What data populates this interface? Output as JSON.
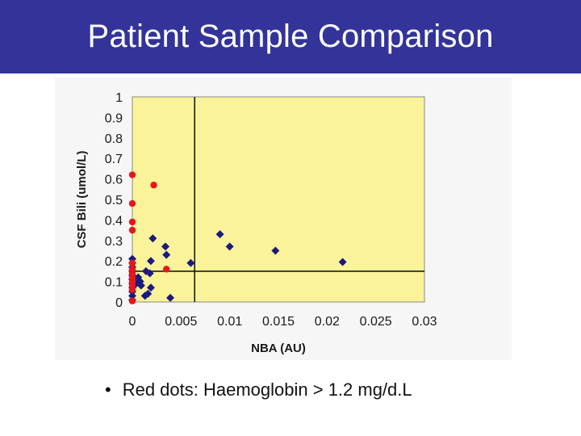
{
  "slide": {
    "title": "Patient Sample Comparison",
    "bullet_marker": "•",
    "bullet_text": "Red dots: Haemoglobin > 1.2 mg/d.L"
  },
  "colors": {
    "title_bar": "#333399",
    "plot_bg": "#fbf399",
    "diamond_series": "#1a1a80",
    "dot_series": "#e8161b",
    "reference_lines": "#1a1a1a"
  },
  "chart_data": {
    "type": "scatter",
    "title": "",
    "xlabel": "NBA (AU)",
    "ylabel": "CSF Bili (umol/L)",
    "xlim": [
      0,
      0.03
    ],
    "ylim": [
      0,
      1
    ],
    "x_ticks": [
      0,
      0.005,
      0.01,
      0.015,
      0.02,
      0.025,
      0.03
    ],
    "x_tick_labels": [
      "0",
      "0.005",
      "0.01",
      "0.015",
      "0.02",
      "0.025",
      "0.03"
    ],
    "y_ticks": [
      0,
      0.1,
      0.2,
      0.3,
      0.4,
      0.5,
      0.6,
      0.7,
      0.8,
      0.9,
      1
    ],
    "y_tick_labels": [
      "0",
      "0.1",
      "0.2",
      "0.3",
      "0.4",
      "0.5",
      "0.6",
      "0.7",
      "0.8",
      "0.9",
      "1"
    ],
    "grid": false,
    "legend": "none",
    "reference_lines": {
      "x": 0.0064,
      "y": 0.15
    },
    "series": [
      {
        "marker": "diamond",
        "color": "#1a1a80",
        "points": [
          [
            0,
            0.21
          ],
          [
            0,
            0.19
          ],
          [
            0,
            0.17
          ],
          [
            0,
            0.15
          ],
          [
            0,
            0.13
          ],
          [
            0,
            0.11
          ],
          [
            0,
            0.09
          ],
          [
            0,
            0.07
          ],
          [
            0,
            0.05
          ],
          [
            0,
            0.03
          ],
          [
            0,
            0.01
          ],
          [
            0.0004,
            0.09
          ],
          [
            0.0006,
            0.12
          ],
          [
            0.0008,
            0.1
          ],
          [
            0.0009,
            0.08
          ],
          [
            0.0013,
            0.03
          ],
          [
            0.0014,
            0.15
          ],
          [
            0.0016,
            0.04
          ],
          [
            0.0018,
            0.14
          ],
          [
            0.0019,
            0.07
          ],
          [
            0.0019,
            0.2
          ],
          [
            0.0021,
            0.31
          ],
          [
            0.0034,
            0.27
          ],
          [
            0.0035,
            0.23
          ],
          [
            0.0039,
            0.02
          ],
          [
            0.006,
            0.19
          ],
          [
            0.009,
            0.33
          ],
          [
            0.01,
            0.27
          ],
          [
            0.0147,
            0.25
          ],
          [
            0.0216,
            0.195
          ]
        ]
      },
      {
        "marker": "circle",
        "color": "#e8161b",
        "points": [
          [
            0,
            0.62
          ],
          [
            0,
            0.48
          ],
          [
            0,
            0.39
          ],
          [
            0,
            0.35
          ],
          [
            0,
            0.19
          ],
          [
            0,
            0.16
          ],
          [
            0,
            0.14
          ],
          [
            0,
            0.12
          ],
          [
            0,
            0.1
          ],
          [
            0,
            0.08
          ],
          [
            0,
            0.06
          ],
          [
            0,
            0.005
          ],
          [
            0.0022,
            0.57
          ],
          [
            0.0035,
            0.16
          ]
        ]
      }
    ]
  }
}
